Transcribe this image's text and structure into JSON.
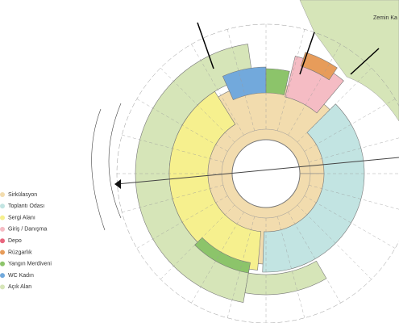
{
  "plan": {
    "label": "Zemin Ka"
  },
  "legend": [
    {
      "label": "Sirkülasyon",
      "color": "#f2dcae"
    },
    {
      "label": "Toplantı Odası",
      "color": "#c2e4e2"
    },
    {
      "label": "Sergi Alanı",
      "color": "#f6f08e"
    },
    {
      "label": "Giriş / Danışma",
      "color": "#f5bcc4"
    },
    {
      "label": "Depo",
      "color": "#e8667e"
    },
    {
      "label": "Rüzgarlık",
      "color": "#e79c5a"
    },
    {
      "label": "Yangın Merdiveni",
      "color": "#8cc46a"
    },
    {
      "label": "WC Kadın",
      "color": "#72a9dc"
    },
    {
      "label": "Açık Alan",
      "color": "#d6e5b8"
    }
  ]
}
